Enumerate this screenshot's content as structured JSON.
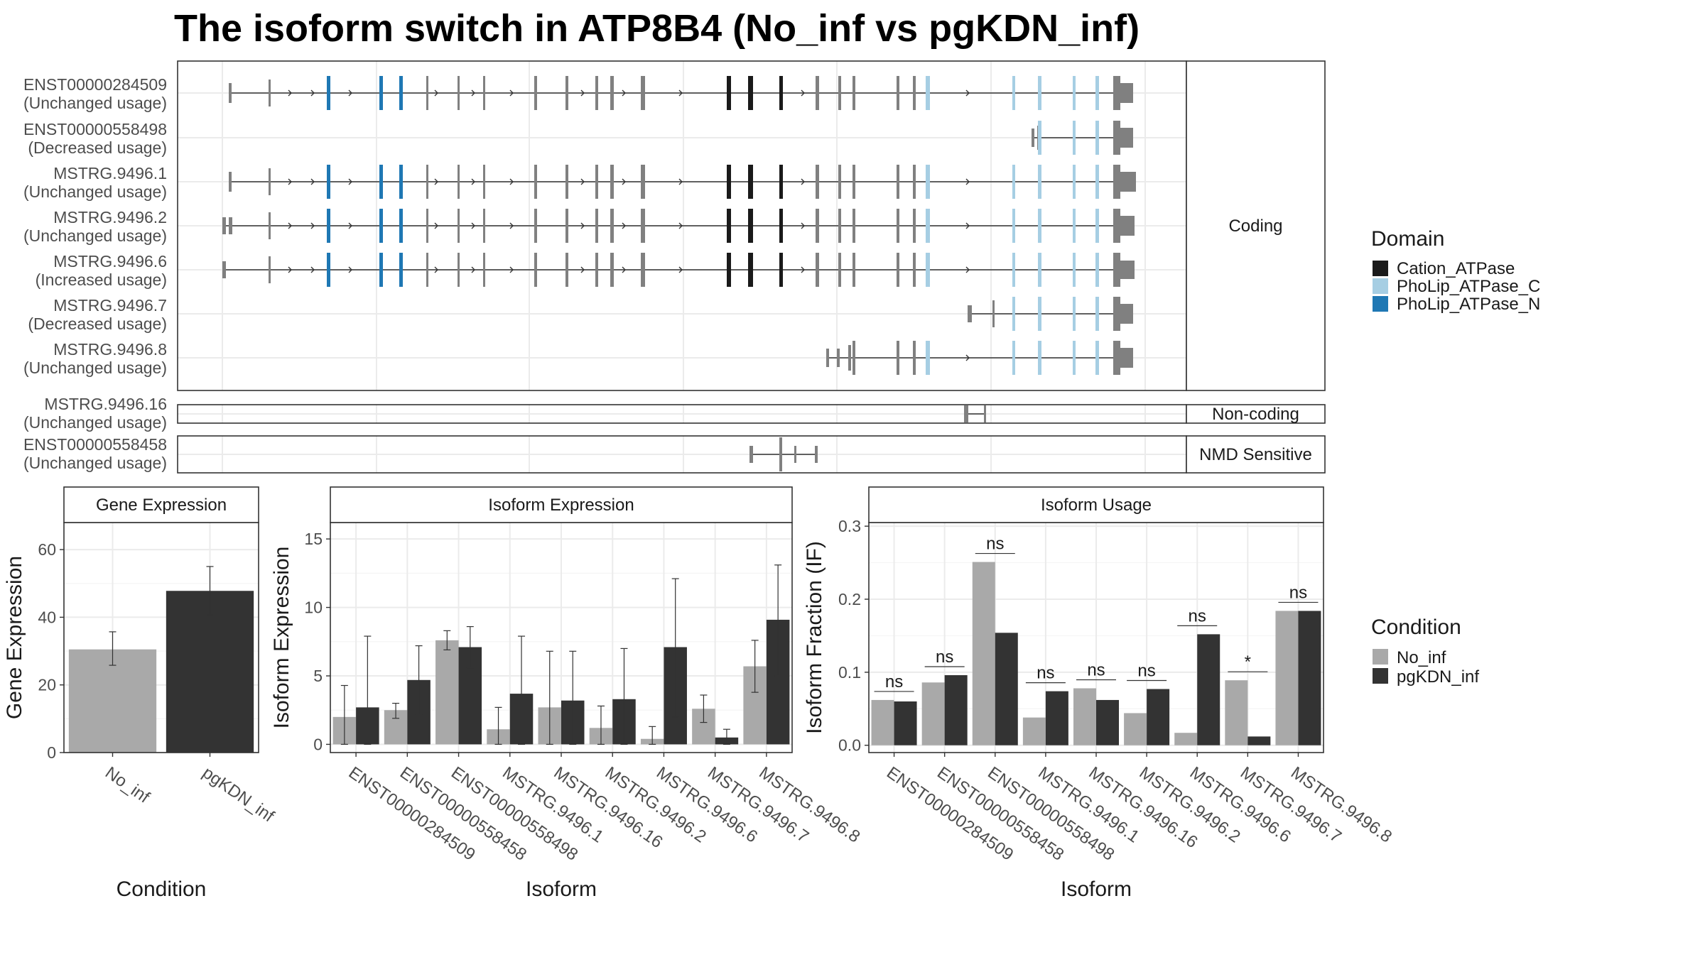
{
  "title": "The isoform switch in ATP8B4 (No_inf vs pgKDN_inf)",
  "colors": {
    "no_inf": "#a9a9a9",
    "pgkdn_inf": "#333333",
    "cation_atpase": "#1a1a1a",
    "pholip_atpase_c": "#a6cee3",
    "pholip_atpase_n": "#1f78b4",
    "exon": "#808080",
    "grid": "#ebebeb",
    "panel_border": "#333333",
    "strip_fill": "#ffffff"
  },
  "structure": {
    "facets": [
      {
        "label": "Coding",
        "row_count": 7
      },
      {
        "label": "Non-coding",
        "row_count": 1
      },
      {
        "label": "NMD Sensitive",
        "row_count": 1
      }
    ],
    "transcripts": [
      {
        "id": "ENST00000284509",
        "usage": "(Unchanged usage)",
        "facet": 0
      },
      {
        "id": "ENST00000558498",
        "usage": "(Decreased usage)",
        "facet": 0
      },
      {
        "id": "MSTRG.9496.1",
        "usage": "(Unchanged usage)",
        "facet": 0
      },
      {
        "id": "MSTRG.9496.2",
        "usage": "(Unchanged usage)",
        "facet": 0
      },
      {
        "id": "MSTRG.9496.6",
        "usage": "(Increased usage)",
        "facet": 0
      },
      {
        "id": "MSTRG.9496.7",
        "usage": "(Decreased usage)",
        "facet": 0
      },
      {
        "id": "MSTRG.9496.8",
        "usage": "(Unchanged usage)",
        "facet": 0
      },
      {
        "id": "MSTRG.9496.16",
        "usage": "(Unchanged usage)",
        "facet": 1
      },
      {
        "id": "ENST00000558458",
        "usage": "(Unchanged usage)",
        "facet": 2
      }
    ],
    "legend": {
      "title": "Domain",
      "items": [
        {
          "label": "Cation_ATPase",
          "color_key": "cation_atpase"
        },
        {
          "label": "PhoLip_ATPase_C",
          "color_key": "pholip_atpase_c"
        },
        {
          "label": "PhoLip_ATPase_N",
          "color_key": "pholip_atpase_n"
        }
      ]
    }
  },
  "condition_legend": {
    "title": "Condition",
    "items": [
      {
        "label": "No_inf",
        "color_key": "no_inf"
      },
      {
        "label": "pgKDN_inf",
        "color_key": "pgkdn_inf"
      }
    ]
  },
  "chart_data": [
    {
      "type": "bar",
      "title": "Gene Expression",
      "xlabel": "Condition",
      "ylabel": "Gene Expression",
      "ylim": [
        0,
        68
      ],
      "yticks": [
        0,
        20,
        40,
        60
      ],
      "categories": [
        "No_inf",
        "pgKDN_inf"
      ],
      "values": [
        30.5,
        47.8
      ],
      "error_low": [
        25.8,
        40.7
      ],
      "error_high": [
        35.7,
        55.0
      ],
      "color_keys": [
        "no_inf",
        "pgkdn_inf"
      ],
      "grid": true
    },
    {
      "type": "bar",
      "title": "Isoform Expression",
      "xlabel": "Isoform",
      "ylabel": "Isoform Expression",
      "ylim": [
        -0.6,
        16.2
      ],
      "yticks": [
        0,
        5,
        10,
        15
      ],
      "categories": [
        "ENST00000284509",
        "ENST00000558458",
        "ENST00000558498",
        "MSTRG.9496.1",
        "MSTRG.9496.16",
        "MSTRG.9496.2",
        "MSTRG.9496.6",
        "MSTRG.9496.7",
        "MSTRG.9496.8"
      ],
      "series": [
        {
          "name": "No_inf",
          "color_key": "no_inf",
          "values": [
            2.0,
            2.5,
            7.6,
            1.1,
            2.7,
            1.2,
            0.4,
            2.6,
            5.7
          ],
          "error_low": [
            0.0,
            1.9,
            6.9,
            0.0,
            0.0,
            0.0,
            0.0,
            1.6,
            3.8
          ],
          "error_high": [
            4.3,
            3.0,
            8.3,
            2.7,
            6.8,
            2.8,
            1.3,
            3.6,
            7.6
          ]
        },
        {
          "name": "pgKDN_inf",
          "color_key": "pgkdn_inf",
          "values": [
            2.7,
            4.7,
            7.1,
            3.7,
            3.2,
            3.3,
            7.1,
            0.5,
            9.1
          ],
          "error_low": [
            0.0,
            2.2,
            5.6,
            0.0,
            0.0,
            0.0,
            2.0,
            0.0,
            5.0
          ],
          "error_high": [
            7.9,
            7.2,
            8.6,
            7.9,
            6.8,
            7.0,
            12.1,
            1.1,
            13.1
          ]
        }
      ],
      "grid": true
    },
    {
      "type": "bar",
      "title": "Isoform Usage",
      "xlabel": "Isoform",
      "ylabel": "Isoform Fraction (IF)",
      "ylim": [
        -0.01,
        0.305
      ],
      "yticks": [
        0.0,
        0.1,
        0.2,
        0.3
      ],
      "ytick_labels": [
        "0.0",
        "0.1",
        "0.2",
        "0.3"
      ],
      "categories": [
        "ENST00000284509",
        "ENST00000558458",
        "ENST00000558498",
        "MSTRG.9496.1",
        "MSTRG.9496.16",
        "MSTRG.9496.2",
        "MSTRG.9496.6",
        "MSTRG.9496.7",
        "MSTRG.9496.8"
      ],
      "series": [
        {
          "name": "No_inf",
          "color_key": "no_inf",
          "values": [
            0.062,
            0.086,
            0.251,
            0.038,
            0.078,
            0.044,
            0.017,
            0.089,
            0.184
          ]
        },
        {
          "name": "pgKDN_inf",
          "color_key": "pgkdn_inf",
          "values": [
            0.06,
            0.096,
            0.154,
            0.074,
            0.062,
            0.077,
            0.152,
            0.012,
            0.184
          ]
        }
      ],
      "significance": [
        "ns",
        "ns",
        "ns",
        "ns",
        "ns",
        "ns",
        "ns",
        "*",
        "ns"
      ],
      "grid": true
    }
  ]
}
